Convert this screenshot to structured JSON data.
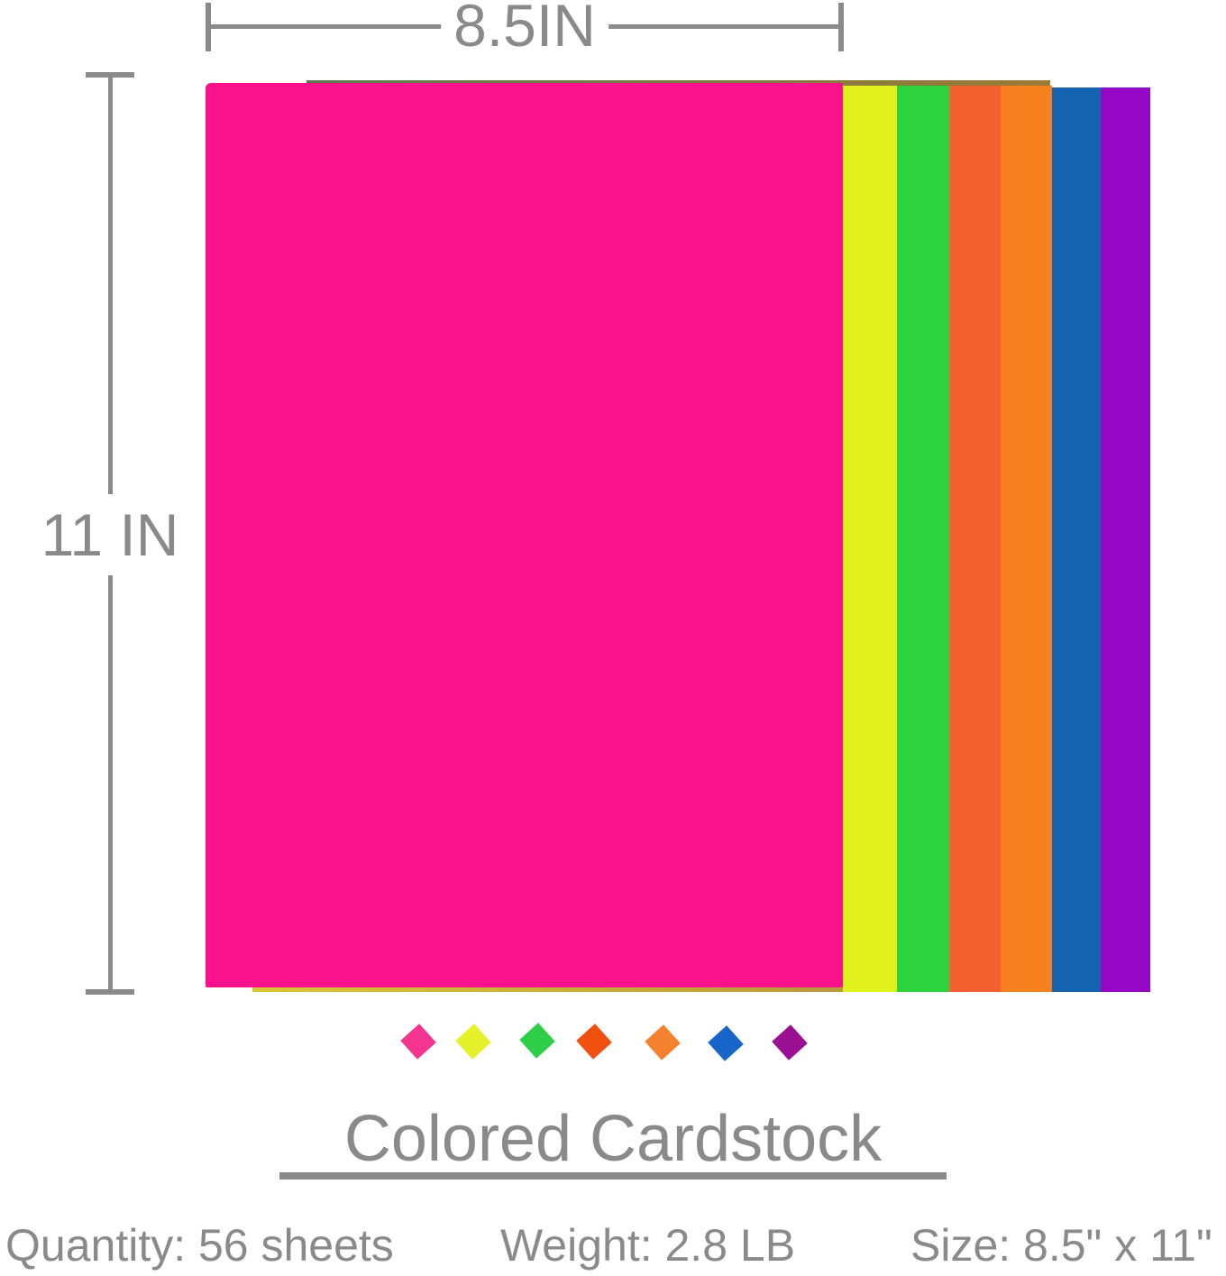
{
  "meta": {
    "background_color": "#ffffff",
    "annotation_color": "#8a8a8a"
  },
  "dimensions": {
    "width_label": "8.5IN",
    "height_label": "11 IN"
  },
  "stack": {
    "sheets": [
      {
        "name": "pink",
        "color": "#f9128b"
      },
      {
        "name": "yellow",
        "color": "#e2f21d"
      },
      {
        "name": "green",
        "color": "#2dd23f"
      },
      {
        "name": "red-orange",
        "color": "#f2602f"
      },
      {
        "name": "orange",
        "color": "#f8811f"
      },
      {
        "name": "blue",
        "color": "#1464b2"
      },
      {
        "name": "purple",
        "color": "#9408c6"
      }
    ]
  },
  "swatches": [
    {
      "name": "pink",
      "color": "#f3358f"
    },
    {
      "name": "yellow",
      "color": "#e5f22b"
    },
    {
      "name": "green",
      "color": "#2fce48"
    },
    {
      "name": "red-orange",
      "color": "#f04f10"
    },
    {
      "name": "orange",
      "color": "#f6822f"
    },
    {
      "name": "blue",
      "color": "#1765c8"
    },
    {
      "name": "purple",
      "color": "#9b1092"
    }
  ],
  "title": {
    "text": "Colored Cardstock"
  },
  "specs": [
    {
      "label": "Quantity",
      "value": "56 sheets",
      "text": "Quantity: 56 sheets"
    },
    {
      "label": "Weight",
      "value": "2.8 LB",
      "text": "Weight: 2.8 LB"
    },
    {
      "label": "Size",
      "value": "8.5\" x 11\"",
      "text": "Size: 8.5\" x 11\""
    }
  ]
}
